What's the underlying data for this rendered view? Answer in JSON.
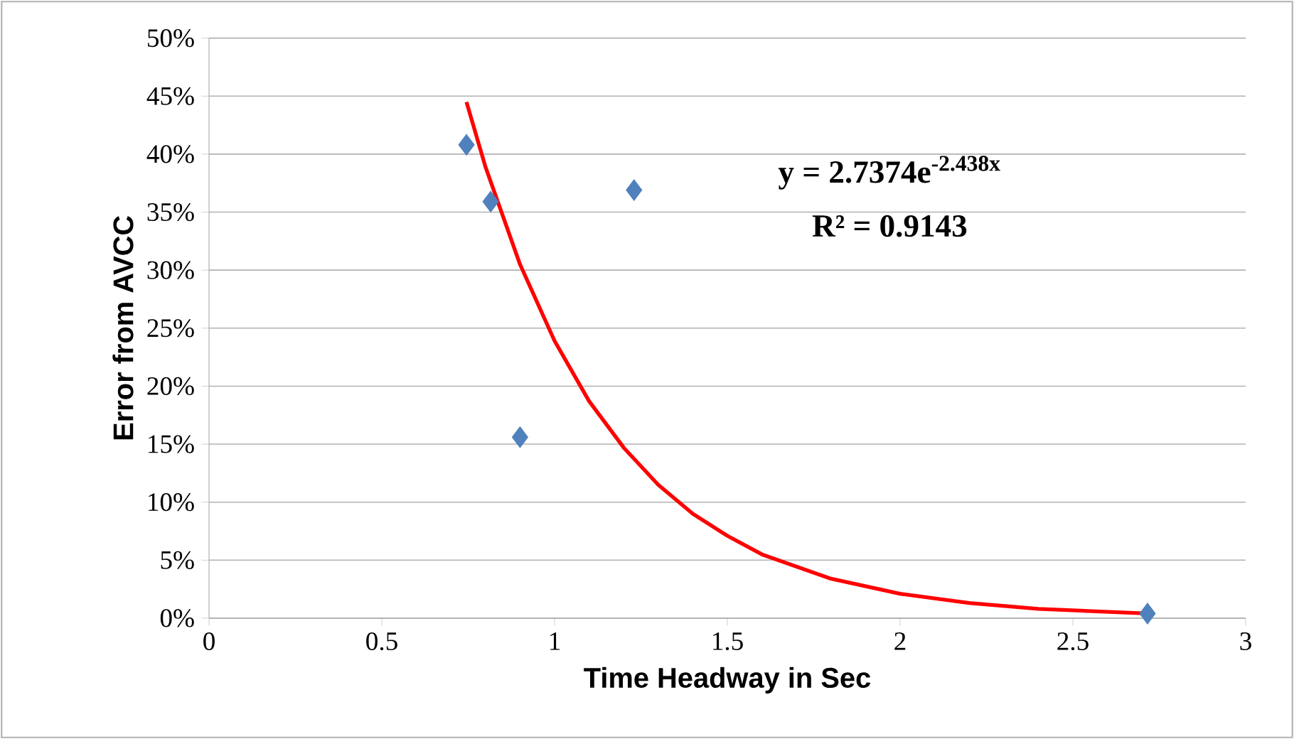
{
  "chart_data": {
    "type": "scatter",
    "xlabel": "Time Headway in Sec",
    "ylabel": "Error from AVCC",
    "xlim": [
      0,
      3
    ],
    "xticks": [
      0,
      0.5,
      1,
      1.5,
      2,
      2.5,
      3
    ],
    "ylim": [
      0,
      50
    ],
    "yticks": [
      {
        "value": 0,
        "label": "0%"
      },
      {
        "value": 5,
        "label": "5%"
      },
      {
        "value": 10,
        "label": "10%"
      },
      {
        "value": 15,
        "label": "15%"
      },
      {
        "value": 20,
        "label": "20%"
      },
      {
        "value": 25,
        "label": "25%"
      },
      {
        "value": 30,
        "label": "30%"
      },
      {
        "value": 35,
        "label": "35%"
      },
      {
        "value": 40,
        "label": "40%"
      },
      {
        "value": 45,
        "label": "45%"
      },
      {
        "value": 50,
        "label": "50%"
      }
    ],
    "grid": "y",
    "series": [
      {
        "marker": "diamond",
        "color": "#4f81bd",
        "x": [
          0.745,
          0.815,
          0.9,
          1.23,
          2.716
        ],
        "values": [
          40.8,
          35.9,
          15.6,
          36.9,
          0.4
        ]
      },
      {
        "type": "line",
        "marker": "none",
        "line_style": "solid",
        "color": "#ff0000",
        "x": [
          0.745,
          0.8,
          0.9,
          1.0,
          1.1,
          1.2,
          1.3,
          1.4,
          1.5,
          1.6,
          1.8,
          2.0,
          2.2,
          2.4,
          2.716
        ],
        "values": [
          44.5,
          38.9,
          30.5,
          23.9,
          18.7,
          14.7,
          11.5,
          9.0,
          7.1,
          5.5,
          3.4,
          2.1,
          1.3,
          0.8,
          0.4
        ]
      }
    ],
    "annotations": [
      "y = 2.7374e$^{-2.438x}$",
      "R² = 0.9143"
    ]
  }
}
